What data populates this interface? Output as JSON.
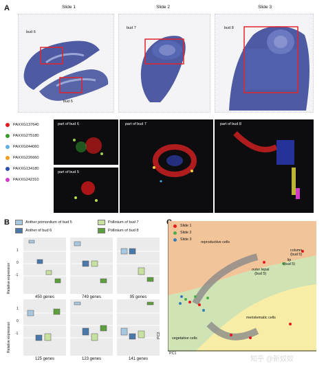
{
  "panel_a": {
    "letter": "A",
    "slides": [
      "Slide 1",
      "Slide 2",
      "Slide 3"
    ],
    "bud_labels": [
      "bud 6",
      "bud 5",
      "bud 7",
      "bud 8"
    ],
    "legend": [
      {
        "gene": "PAXXG137640",
        "color": "#e41a1c"
      },
      {
        "gene": "PAXXG275180",
        "color": "#3a9a2e"
      },
      {
        "gene": "PAXXG044060",
        "color": "#5fb0e0"
      },
      {
        "gene": "PAXXG226660",
        "color": "#f0a020"
      },
      {
        "gene": "PAXXG134180",
        "color": "#2f4fb0"
      },
      {
        "gene": "PAXXG242310",
        "color": "#d03cc8"
      }
    ],
    "insets": [
      "part of bud 6",
      "part of bud 5",
      "part of bud 7",
      "part of bud 8"
    ]
  },
  "panel_b": {
    "letter": "B",
    "legend": [
      {
        "label": "Anther primordium of bud 5",
        "color": "#a8c8e0"
      },
      {
        "label": "Anther of bud 6",
        "color": "#4a78aa"
      },
      {
        "label": "Pollinium of bud 7",
        "color": "#c8e0a0"
      },
      {
        "label": "Pollinium of bud 8",
        "color": "#5e9e3c"
      }
    ],
    "y_label": "Relative expression",
    "y_ticks": [
      "1",
      "0",
      "-1"
    ],
    "gene_counts": [
      "450 genes",
      "749 genes",
      "95 genes",
      "125 genes",
      "123 genes",
      "141 genes"
    ]
  },
  "panel_c": {
    "letter": "C",
    "legend": [
      {
        "label": "Slide 1",
        "color": "#e41a1c"
      },
      {
        "label": "Slide 2",
        "color": "#4daf4a"
      },
      {
        "label": "Slide 3",
        "color": "#377eb8"
      }
    ],
    "regions": [
      "reproductive cells",
      "column\n(bud 5)",
      "lip\n(bud 5)",
      "outer tepal\n(bud 5)",
      "meristematic cells",
      "vegetative cells"
    ],
    "x_axis": "PC1",
    "y_axis": "PC2",
    "colors": {
      "orange": "#f2c49a",
      "green": "#cfe3b4",
      "yellow": "#f7eda6"
    }
  },
  "watermark": "知乎 @新奴奴"
}
